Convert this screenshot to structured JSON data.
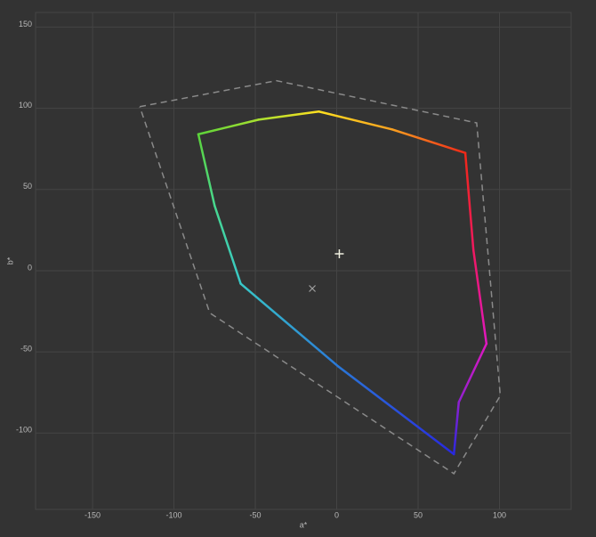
{
  "chart_data": {
    "type": "gamut",
    "x_label": "a*",
    "y_label": "b*",
    "xlim": [
      -185,
      144
    ],
    "ylim": [
      -147,
      159
    ],
    "xticks": [
      -150,
      -100,
      -50,
      0,
      50,
      100
    ],
    "yticks": [
      150,
      100,
      50,
      0,
      -50,
      -100
    ],
    "grid": true,
    "gamut": {
      "x": [
        -85,
        -48,
        -11,
        34,
        79,
        84,
        92,
        75,
        72,
        1,
        -59,
        -75,
        -85
      ],
      "values": [
        84,
        93,
        98,
        87,
        72.5,
        12.6,
        -45,
        -81,
        -113,
        -59,
        -8,
        40,
        84
      ],
      "colors": [
        "#5cd43a",
        "#a8e030",
        "#ffe020",
        "#f8a020",
        "#f02818",
        "#f01860",
        "#e018c0",
        "#9020d0",
        "#2828e0",
        "#2a78d8",
        "#38c8c8",
        "#48d890",
        "#5cd43a"
      ]
    },
    "reference": {
      "x": [
        -121,
        -37,
        86,
        100.5,
        72,
        -78,
        -121
      ],
      "values": [
        101,
        117,
        91,
        -77,
        -125,
        -26,
        101
      ],
      "color": "#8a8a8a"
    },
    "white_point": {
      "x": 1.6,
      "value": 10.4,
      "color": "#f0f0e0"
    },
    "target_point": {
      "x": -15,
      "value": -11,
      "color": "#a0a0a0"
    }
  }
}
